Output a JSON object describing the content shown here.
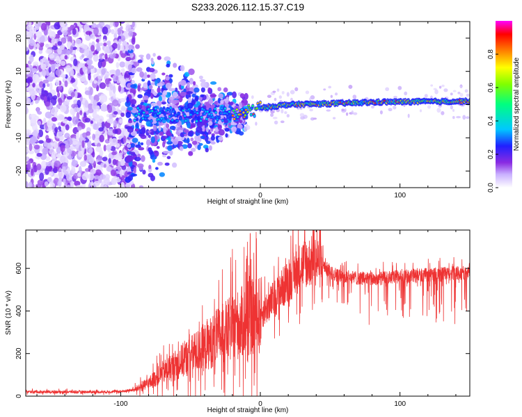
{
  "title": "S233.2026.112.15.37.C19",
  "chart_data": [
    {
      "type": "heatmap",
      "title": "S233.2026.112.15.37.C19",
      "xlabel": "Height of straight line (km)",
      "ylabel": "Frequency (Hz)",
      "xlim": [
        -168,
        150
      ],
      "ylim": [
        -25,
        25
      ],
      "xticks": [
        -100,
        0,
        100
      ],
      "xtick_labels": [
        "-100",
        "0",
        "100"
      ],
      "yticks": [
        -20,
        -10,
        0,
        10,
        20
      ],
      "ytick_labels": [
        "-20",
        "-10",
        "0",
        "10",
        "20"
      ],
      "colorbar": {
        "label": "Normalized spectral amplitude",
        "range": [
          0,
          1
        ],
        "ticks": [
          0.0,
          0.2,
          0.4,
          0.6,
          0.8
        ],
        "tick_labels": [
          "0.0",
          "0.2",
          "0.4",
          "0.6",
          "0.8"
        ]
      },
      "signal_track": [
        {
          "x": -20,
          "freq": -3,
          "amp": 0.5
        },
        {
          "x": -10,
          "freq": -2.5,
          "amp": 0.7
        },
        {
          "x": 0,
          "freq": -1,
          "amp": 0.85
        },
        {
          "x": 20,
          "freq": 0,
          "amp": 0.9
        },
        {
          "x": 50,
          "freq": 0.3,
          "amp": 0.9
        },
        {
          "x": 90,
          "freq": 0.8,
          "amp": 0.95
        },
        {
          "x": 150,
          "freq": 1,
          "amp": 0.95
        }
      ]
    },
    {
      "type": "line",
      "xlabel": "Height of straight line (km)",
      "ylabel": "SNR (10 * v/v)",
      "xlim": [
        -168,
        150
      ],
      "ylim": [
        0,
        780
      ],
      "xticks": [
        -100,
        0,
        100
      ],
      "xtick_labels": [
        "-100",
        "0",
        "100"
      ],
      "yticks": [
        0,
        200,
        400,
        600
      ],
      "ytick_labels": [
        "0",
        "200",
        "400",
        "600"
      ],
      "series": [
        {
          "name": "SNR",
          "color": "#ee3333",
          "x": [
            -168,
            -140,
            -110,
            -100,
            -90,
            -80,
            -70,
            -60,
            -50,
            -40,
            -30,
            -20,
            -10,
            0,
            10,
            20,
            30,
            40,
            50,
            60,
            80,
            100,
            120,
            150
          ],
          "y": [
            20,
            20,
            20,
            22,
            30,
            60,
            110,
            150,
            190,
            230,
            280,
            320,
            360,
            380,
            460,
            540,
            620,
            640,
            580,
            560,
            550,
            560,
            570,
            580
          ]
        }
      ]
    }
  ]
}
